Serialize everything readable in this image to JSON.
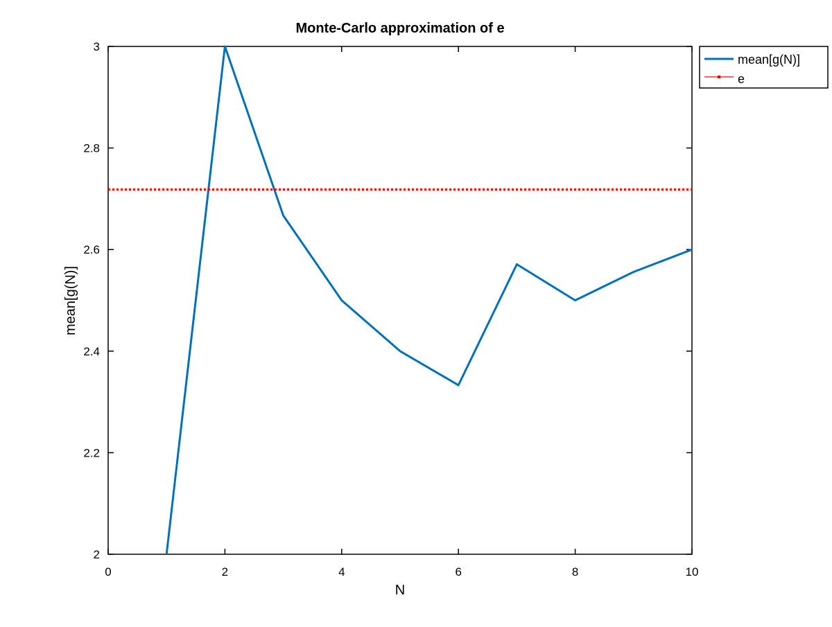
{
  "chart_data": {
    "type": "line",
    "title": "Monte-Carlo approximation of e",
    "xlabel": "N",
    "ylabel": "mean[g(N)]",
    "xlim": [
      0,
      10
    ],
    "ylim": [
      2,
      3
    ],
    "xticks": [
      0,
      2,
      4,
      6,
      8,
      10
    ],
    "yticks": [
      2,
      2.2,
      2.4,
      2.6,
      2.8,
      3
    ],
    "xtick_labels": [
      "0",
      "2",
      "4",
      "6",
      "8",
      "10"
    ],
    "ytick_labels": [
      "2",
      "2.2",
      "2.4",
      "2.6",
      "2.8",
      "3"
    ],
    "grid": false,
    "legend_position": "outside top-right",
    "series": [
      {
        "name": "mean[g(N)]",
        "style": "solid",
        "color": "#0072BD",
        "x": [
          1,
          2,
          3,
          4,
          5,
          6,
          7,
          8,
          9,
          10
        ],
        "y": [
          2,
          3,
          2.667,
          2.5,
          2.4,
          2.333,
          2.571,
          2.5,
          2.556,
          2.6
        ]
      },
      {
        "name": "e",
        "style": "dotted",
        "color": "#FF0000",
        "x": [
          0,
          10
        ],
        "y": [
          2.71828,
          2.71828
        ]
      }
    ]
  }
}
